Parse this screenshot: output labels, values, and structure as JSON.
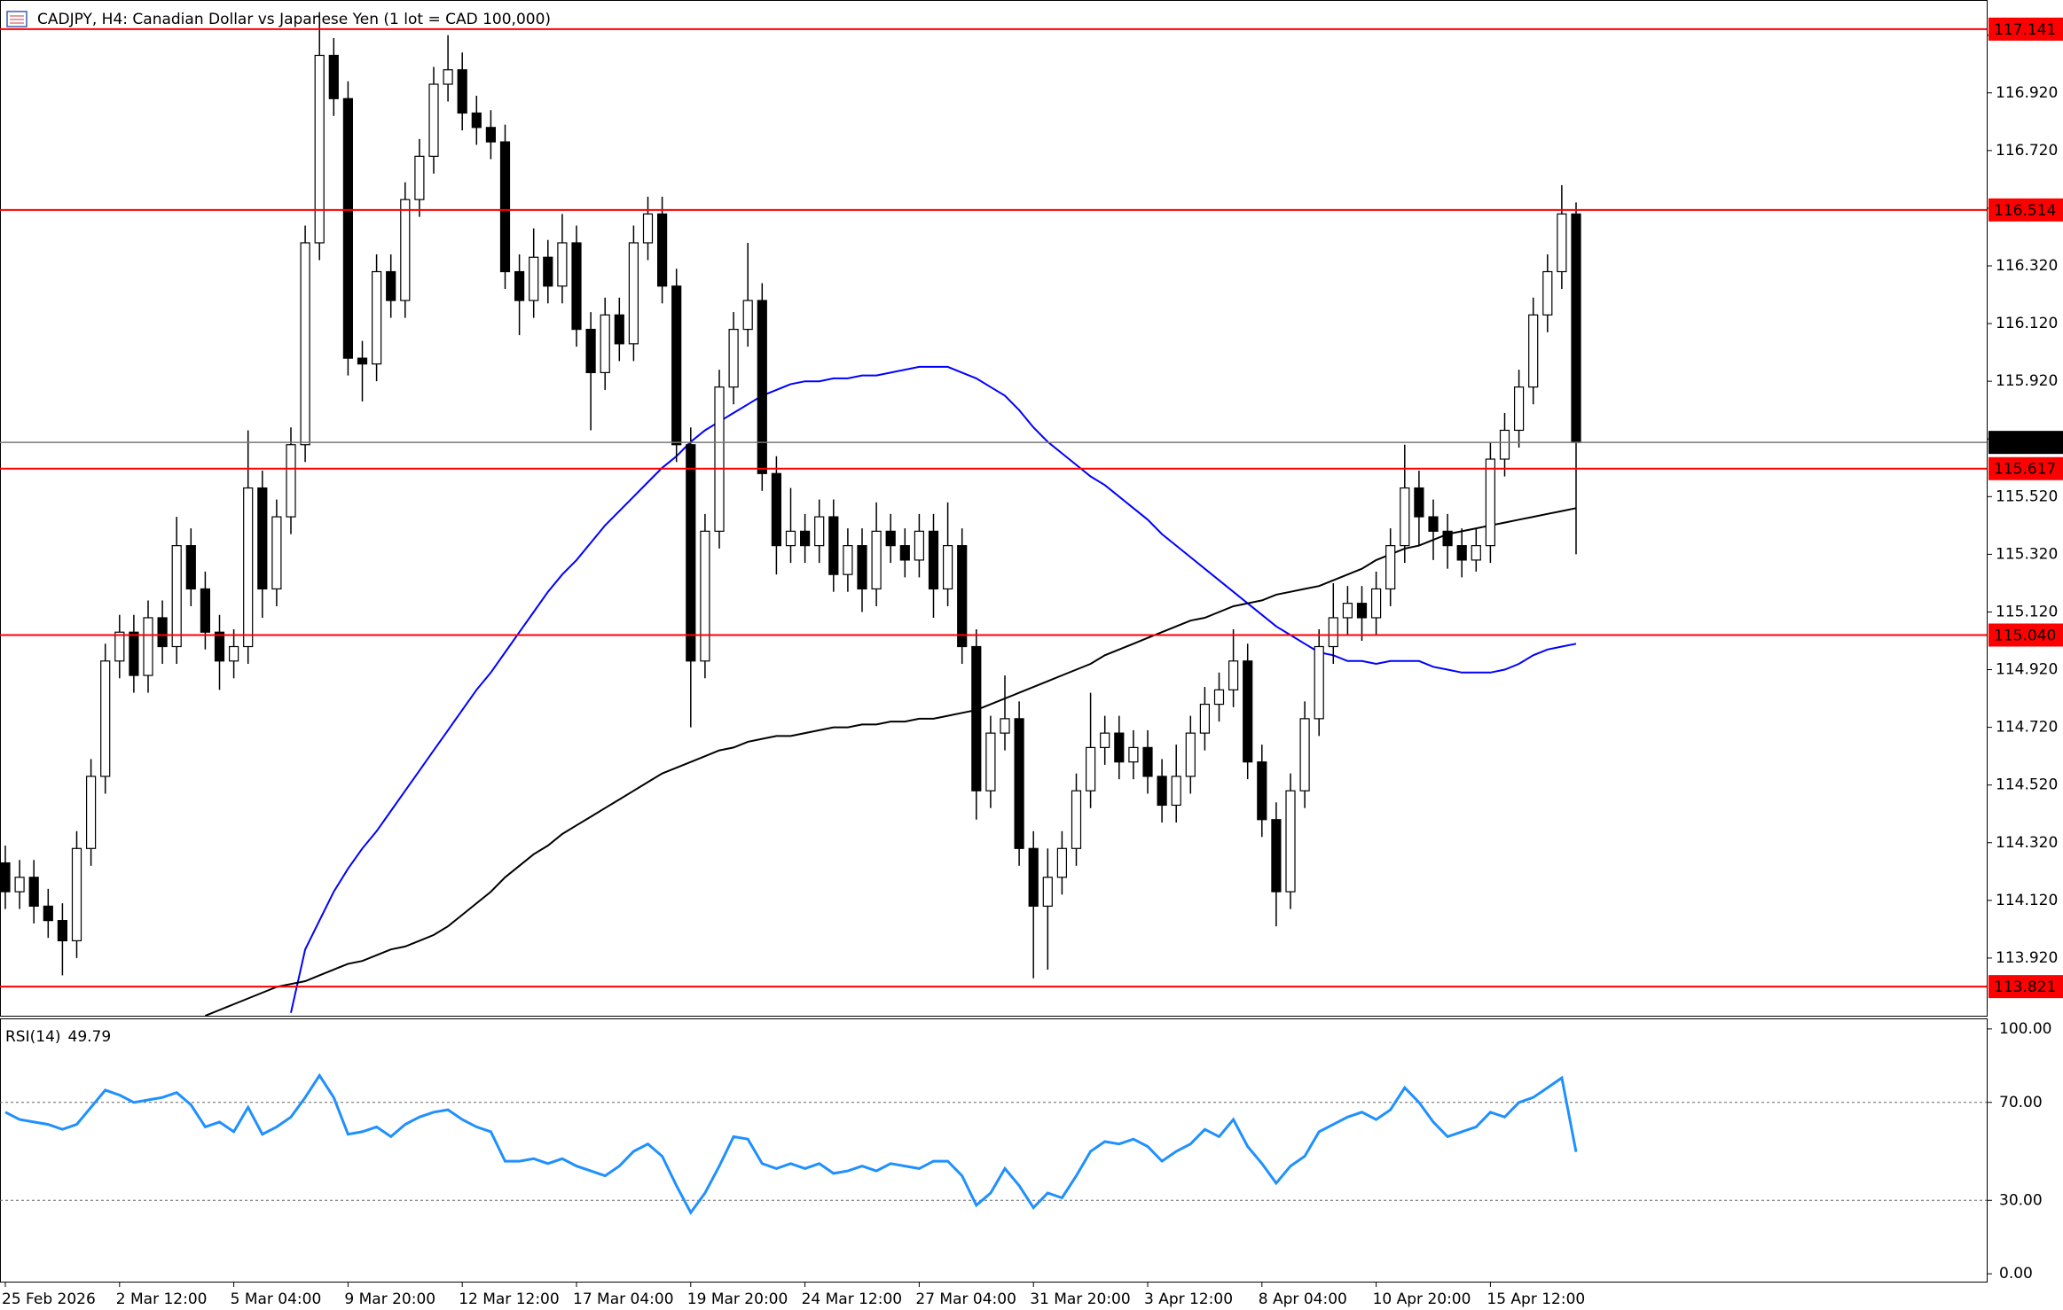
{
  "chart_data": {
    "type": "candlestick",
    "title": "CADJPY, H4:  Canadian Dollar vs Japanese Yen (1 lot = CAD 100,000)",
    "categories": [
      "25 Feb 2026",
      null,
      null,
      null,
      null,
      null,
      null,
      null,
      "2 Mar 12:00",
      null,
      null,
      null,
      null,
      null,
      null,
      null,
      "5 Mar 04:00",
      null,
      null,
      null,
      null,
      null,
      null,
      null,
      "9 Mar 20:00",
      null,
      null,
      null,
      null,
      null,
      null,
      null,
      "12 Mar 12:00",
      null,
      null,
      null,
      null,
      null,
      null,
      null,
      "17 Mar 04:00",
      null,
      null,
      null,
      null,
      null,
      null,
      null,
      "19 Mar 20:00",
      null,
      null,
      null,
      null,
      null,
      null,
      null,
      "24 Mar 12:00",
      null,
      null,
      null,
      null,
      null,
      null,
      null,
      "27 Mar 04:00",
      null,
      null,
      null,
      null,
      null,
      null,
      null,
      "31 Mar 20:00",
      null,
      null,
      null,
      null,
      null,
      null,
      null,
      "3 Apr 12:00",
      null,
      null,
      null,
      null,
      null,
      null,
      null,
      "8 Apr 04:00",
      null,
      null,
      null,
      null,
      null,
      null,
      null,
      "10 Apr 20:00",
      null,
      null,
      null,
      null,
      null,
      null,
      null,
      "15 Apr 12:00",
      null,
      null,
      null,
      null,
      null,
      null
    ],
    "open": [
      114.25,
      114.15,
      114.2,
      114.1,
      114.05,
      113.98,
      114.3,
      114.55,
      114.95,
      115.05,
      114.9,
      115.1,
      115.0,
      115.35,
      115.2,
      115.05,
      114.95,
      115.0,
      115.55,
      115.2,
      115.45,
      115.7,
      116.4,
      117.05,
      116.9,
      116.0,
      115.98,
      116.3,
      116.2,
      116.55,
      116.7,
      116.95,
      117.0,
      116.85,
      116.8,
      116.75,
      116.3,
      116.2,
      116.35,
      116.25,
      116.4,
      116.1,
      115.95,
      116.15,
      116.05,
      116.4,
      116.5,
      116.25,
      115.7,
      114.95,
      115.4,
      115.9,
      116.1,
      116.2,
      115.6,
      115.35,
      115.4,
      115.35,
      115.45,
      115.25,
      115.35,
      115.2,
      115.4,
      115.35,
      115.3,
      115.4,
      115.2,
      115.35,
      115.0,
      114.5,
      114.7,
      114.75,
      114.3,
      114.1,
      114.2,
      114.3,
      114.5,
      114.65,
      114.7,
      114.6,
      114.65,
      114.55,
      114.45,
      114.55,
      114.7,
      114.8,
      114.85,
      114.95,
      114.6,
      114.4,
      114.15,
      114.5,
      114.75,
      115.0,
      115.1,
      115.15,
      115.1,
      115.2,
      115.35,
      115.55,
      115.45,
      115.4,
      115.35,
      115.3,
      115.35,
      115.65,
      115.75,
      115.9,
      116.15,
      116.3,
      116.5
    ],
    "high": [
      114.31,
      114.26,
      114.26,
      114.16,
      114.11,
      114.36,
      114.61,
      115.01,
      115.11,
      115.11,
      115.16,
      115.16,
      115.45,
      115.41,
      115.26,
      115.11,
      115.06,
      115.75,
      115.61,
      115.51,
      115.76,
      116.46,
      117.2,
      117.11,
      116.96,
      116.06,
      116.36,
      116.36,
      116.61,
      116.76,
      117.01,
      117.12,
      117.06,
      116.91,
      116.86,
      116.81,
      116.36,
      116.45,
      116.41,
      116.5,
      116.46,
      116.16,
      116.21,
      116.21,
      116.46,
      116.56,
      116.56,
      116.31,
      115.76,
      115.46,
      115.96,
      116.16,
      116.4,
      116.26,
      115.66,
      115.55,
      115.46,
      115.51,
      115.51,
      115.41,
      115.41,
      115.5,
      115.46,
      115.41,
      115.46,
      115.46,
      115.5,
      115.41,
      115.06,
      114.76,
      114.9,
      114.81,
      114.36,
      114.3,
      114.36,
      114.56,
      114.84,
      114.76,
      114.76,
      114.71,
      114.71,
      114.61,
      114.66,
      114.76,
      114.86,
      114.91,
      115.06,
      115.01,
      114.66,
      114.46,
      114.56,
      114.81,
      115.06,
      115.22,
      115.21,
      115.21,
      115.26,
      115.41,
      115.7,
      115.61,
      115.51,
      115.46,
      115.41,
      115.41,
      115.71,
      115.81,
      115.96,
      116.21,
      116.36,
      116.6,
      116.54
    ],
    "low": [
      114.09,
      114.09,
      114.04,
      113.99,
      113.86,
      113.92,
      114.24,
      114.49,
      114.89,
      114.84,
      114.84,
      114.94,
      114.94,
      115.14,
      114.99,
      114.85,
      114.89,
      114.94,
      115.1,
      115.14,
      115.39,
      115.64,
      116.34,
      116.84,
      115.94,
      115.85,
      115.92,
      116.14,
      116.14,
      116.49,
      116.64,
      116.89,
      116.79,
      116.74,
      116.69,
      116.24,
      116.08,
      116.14,
      116.19,
      116.19,
      116.04,
      115.75,
      115.89,
      115.99,
      115.99,
      116.34,
      116.19,
      115.64,
      114.72,
      114.89,
      115.34,
      115.84,
      116.04,
      115.54,
      115.25,
      115.29,
      115.29,
      115.29,
      115.19,
      115.19,
      115.12,
      115.14,
      115.29,
      115.24,
      115.24,
      115.1,
      115.14,
      114.94,
      114.4,
      114.44,
      114.64,
      114.24,
      113.85,
      113.88,
      114.14,
      114.24,
      114.44,
      114.59,
      114.54,
      114.54,
      114.49,
      114.39,
      114.39,
      114.49,
      114.64,
      114.74,
      114.79,
      114.54,
      114.34,
      114.03,
      114.09,
      114.44,
      114.69,
      114.94,
      115.04,
      115.02,
      115.04,
      115.14,
      115.29,
      115.35,
      115.3,
      115.27,
      115.24,
      115.26,
      115.29,
      115.59,
      115.69,
      115.84,
      116.09,
      116.24,
      115.32
    ],
    "close": [
      114.15,
      114.2,
      114.1,
      114.05,
      113.98,
      114.3,
      114.55,
      114.95,
      115.05,
      114.9,
      115.1,
      115.0,
      115.35,
      115.2,
      115.05,
      114.95,
      115.0,
      115.55,
      115.2,
      115.45,
      115.7,
      116.4,
      117.05,
      116.9,
      116.0,
      115.98,
      116.3,
      116.2,
      116.55,
      116.7,
      116.95,
      117.0,
      116.85,
      116.8,
      116.75,
      116.3,
      116.2,
      116.35,
      116.25,
      116.4,
      116.1,
      115.95,
      116.15,
      116.05,
      116.4,
      116.5,
      116.25,
      115.7,
      114.95,
      115.4,
      115.9,
      116.1,
      116.2,
      115.6,
      115.35,
      115.4,
      115.35,
      115.45,
      115.25,
      115.35,
      115.2,
      115.4,
      115.35,
      115.3,
      115.4,
      115.2,
      115.35,
      115.0,
      114.5,
      114.7,
      114.75,
      114.3,
      114.1,
      114.2,
      114.3,
      114.5,
      114.65,
      114.7,
      114.6,
      114.65,
      114.55,
      114.45,
      114.55,
      114.7,
      114.8,
      114.85,
      114.95,
      114.6,
      114.4,
      114.15,
      114.5,
      114.75,
      115.0,
      115.1,
      115.15,
      115.1,
      115.2,
      115.35,
      115.55,
      115.45,
      115.4,
      115.35,
      115.3,
      115.35,
      115.65,
      115.75,
      115.9,
      116.15,
      116.3,
      116.5,
      115.708
    ],
    "up_color": "#ffffff",
    "down_color": "#000000",
    "overlays": [
      {
        "color": "#0000ff",
        "values": [
          null,
          null,
          null,
          null,
          null,
          null,
          null,
          null,
          null,
          null,
          null,
          null,
          null,
          null,
          null,
          null,
          null,
          null,
          null,
          null,
          113.73,
          113.95,
          114.05,
          114.15,
          114.23,
          114.3,
          114.36,
          114.43,
          114.5,
          114.57,
          114.64,
          114.71,
          114.78,
          114.85,
          114.91,
          114.98,
          115.05,
          115.12,
          115.19,
          115.25,
          115.3,
          115.36,
          115.42,
          115.47,
          115.52,
          115.57,
          115.62,
          115.66,
          115.71,
          115.75,
          115.78,
          115.81,
          115.84,
          115.87,
          115.89,
          115.91,
          115.92,
          115.92,
          115.93,
          115.93,
          115.94,
          115.94,
          115.95,
          115.96,
          115.97,
          115.97,
          115.97,
          115.95,
          115.93,
          115.9,
          115.87,
          115.82,
          115.76,
          115.71,
          115.67,
          115.63,
          115.59,
          115.56,
          115.52,
          115.48,
          115.44,
          115.39,
          115.35,
          115.31,
          115.27,
          115.23,
          115.19,
          115.15,
          115.11,
          115.07,
          115.04,
          115.01,
          114.98,
          114.97,
          114.95,
          114.95,
          114.94,
          114.95,
          114.95,
          114.95,
          114.93,
          114.92,
          114.91,
          114.91,
          114.91,
          114.92,
          114.94,
          114.97,
          114.99,
          115.0,
          115.01
        ]
      },
      {
        "color": "#000000",
        "values": [
          null,
          null,
          null,
          null,
          null,
          null,
          null,
          null,
          null,
          null,
          null,
          null,
          null,
          null,
          113.72,
          113.74,
          113.76,
          113.78,
          113.8,
          113.82,
          113.83,
          113.84,
          113.86,
          113.88,
          113.9,
          113.91,
          113.93,
          113.95,
          113.96,
          113.98,
          114.0,
          114.03,
          114.07,
          114.11,
          114.15,
          114.2,
          114.24,
          114.28,
          114.31,
          114.35,
          114.38,
          114.41,
          114.44,
          114.47,
          114.5,
          114.53,
          114.56,
          114.58,
          114.6,
          114.62,
          114.64,
          114.65,
          114.67,
          114.68,
          114.69,
          114.69,
          114.7,
          114.71,
          114.72,
          114.72,
          114.73,
          114.73,
          114.74,
          114.74,
          114.75,
          114.75,
          114.76,
          114.77,
          114.78,
          114.8,
          114.82,
          114.84,
          114.86,
          114.88,
          114.9,
          114.92,
          114.94,
          114.97,
          114.99,
          115.01,
          115.03,
          115.05,
          115.07,
          115.09,
          115.1,
          115.12,
          115.14,
          115.15,
          115.16,
          115.18,
          115.19,
          115.2,
          115.21,
          115.23,
          115.25,
          115.27,
          115.3,
          115.32,
          115.34,
          115.35,
          115.37,
          115.39,
          115.4,
          115.41,
          115.42,
          115.43,
          115.44,
          115.45,
          115.46,
          115.47,
          115.48
        ]
      }
    ],
    "levels": [
      117.141,
      116.514,
      115.617,
      {
        "value": 115.04,
        "label": "115.040"
      },
      113.821
    ],
    "level_color": "#ff0000",
    "last_price": 115.708,
    "ylim": [
      113.72,
      117.242
    ],
    "yticks": [
      {
        "value": 117.12,
        "label": "117.120"
      },
      {
        "value": 116.92,
        "label": "116.920"
      },
      {
        "value": 116.72,
        "label": "116.720"
      },
      {
        "value": 116.52,
        "label": "116.520"
      },
      {
        "value": 116.32,
        "label": "116.320"
      },
      {
        "value": 116.12,
        "label": "116.120"
      },
      {
        "value": 115.92,
        "label": "115.920"
      },
      {
        "value": 115.72,
        "label": "115.720"
      },
      {
        "value": 115.52,
        "label": "115.520"
      },
      {
        "value": 115.32,
        "label": "115.320"
      },
      {
        "value": 115.12,
        "label": "115.120"
      },
      {
        "value": 114.92,
        "label": "114.920"
      },
      {
        "value": 114.72,
        "label": "114.720"
      },
      {
        "value": 114.52,
        "label": "114.520"
      },
      {
        "value": 114.32,
        "label": "114.320"
      },
      {
        "value": 114.12,
        "label": "114.120"
      },
      {
        "value": 113.92,
        "label": "113.920"
      }
    ],
    "indicator": {
      "type": "line",
      "label": "RSI(14)",
      "color": "#1e90ff",
      "values": [
        66,
        63,
        62,
        61,
        59,
        61,
        68,
        75,
        73,
        70,
        71,
        72,
        74,
        69,
        60,
        62,
        58,
        68,
        57,
        60,
        64,
        72,
        81,
        72,
        57,
        58,
        60,
        56,
        61,
        64,
        66,
        67,
        63,
        60,
        58,
        46,
        46,
        47,
        45,
        47,
        44,
        42,
        40,
        44,
        50,
        53,
        48,
        36,
        25,
        33,
        44,
        56,
        55,
        45,
        43,
        45,
        43,
        45,
        41,
        42,
        44,
        42,
        45,
        44,
        43,
        46,
        46,
        40,
        28,
        33,
        43,
        36,
        27,
        33,
        31,
        40,
        50,
        54,
        53,
        55,
        52,
        46,
        50,
        53,
        59,
        56,
        63,
        52,
        45,
        37,
        44,
        48,
        58,
        61,
        64,
        66,
        63,
        67,
        76,
        70,
        62,
        56,
        58,
        60,
        66,
        64,
        70,
        72,
        76,
        80,
        49.79
      ],
      "ylim": [
        -3.2,
        104.3
      ],
      "yticks": [
        {
          "value": 100,
          "label": "100.00"
        },
        {
          "value": 70,
          "label": "70.00"
        },
        {
          "value": 30,
          "label": "30.00"
        },
        {
          "value": 0,
          "label": "0.00"
        }
      ],
      "levels": [
        70,
        30
      ]
    }
  }
}
